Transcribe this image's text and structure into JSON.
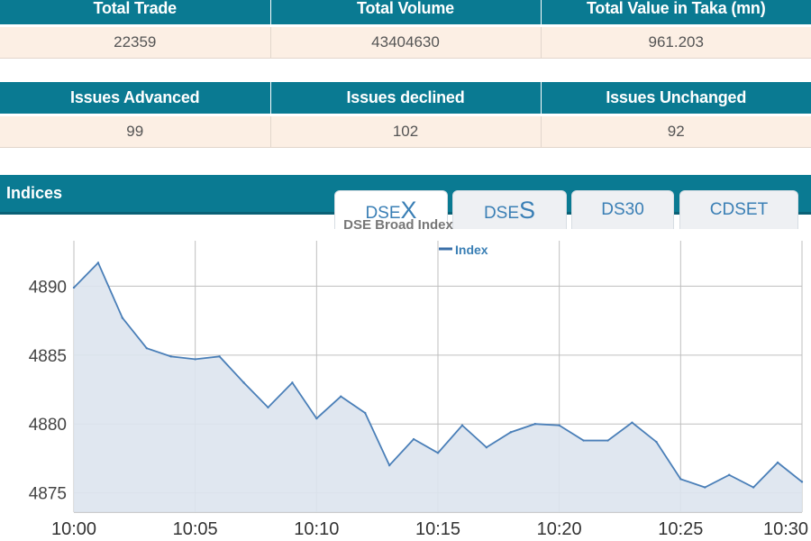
{
  "summary_table_1": {
    "headers": [
      "Total Trade",
      "Total Volume",
      "Total Value in Taka (mn)"
    ],
    "values": [
      "22359",
      "43404630",
      "961.203"
    ]
  },
  "summary_table_2": {
    "headers": [
      "Issues Advanced",
      "Issues declined",
      "Issues Unchanged"
    ],
    "values": [
      "99",
      "102",
      "92"
    ]
  },
  "indices": {
    "title": "Indices",
    "tabs": [
      {
        "prefix": "DSE",
        "suffix": "X",
        "active": true
      },
      {
        "prefix": "DSE",
        "suffix": "S",
        "active": false
      },
      {
        "prefix": "DS30",
        "suffix": "",
        "active": false
      },
      {
        "prefix": "CDSET",
        "suffix": "",
        "active": false
      }
    ]
  },
  "colors": {
    "header_teal": "#0a7a92",
    "row_peach": "#fcefe4",
    "line_blue": "#4a7fb8",
    "area_fill": "#dde4ee"
  },
  "chart_data": {
    "type": "area",
    "title": "DSE Broad Index",
    "series": [
      {
        "name": "Index",
        "x": [
          "10:00",
          "10:01",
          "10:02",
          "10:03",
          "10:04",
          "10:05",
          "10:06",
          "10:07",
          "10:08",
          "10:09",
          "10:10",
          "10:11",
          "10:12",
          "10:13",
          "10:14",
          "10:15",
          "10:16",
          "10:17",
          "10:18",
          "10:19",
          "10:20",
          "10:21",
          "10:22",
          "10:23",
          "10:24",
          "10:25",
          "10:26",
          "10:27",
          "10:28",
          "10:29",
          "10:30"
        ],
        "values": [
          4889.9,
          4891.7,
          4887.7,
          4885.5,
          4884.9,
          4884.7,
          4884.9,
          4883.0,
          4881.2,
          4883.0,
          4880.4,
          4882.0,
          4880.8,
          4877.0,
          4878.9,
          4877.9,
          4879.9,
          4878.3,
          4879.4,
          4880.0,
          4879.9,
          4878.8,
          4878.8,
          4880.1,
          4878.7,
          4876.0,
          4875.4,
          4876.3,
          4875.4,
          4877.2,
          4875.8
        ]
      }
    ],
    "x_ticks": [
      "10:00",
      "10:05",
      "10:10",
      "10:15",
      "10:20",
      "10:25",
      "10:30"
    ],
    "y_ticks": [
      "4875",
      "4880",
      "4885",
      "4890"
    ],
    "ylim": [
      4873.6,
      4893.3
    ],
    "legend": "top-center",
    "grid": true
  }
}
